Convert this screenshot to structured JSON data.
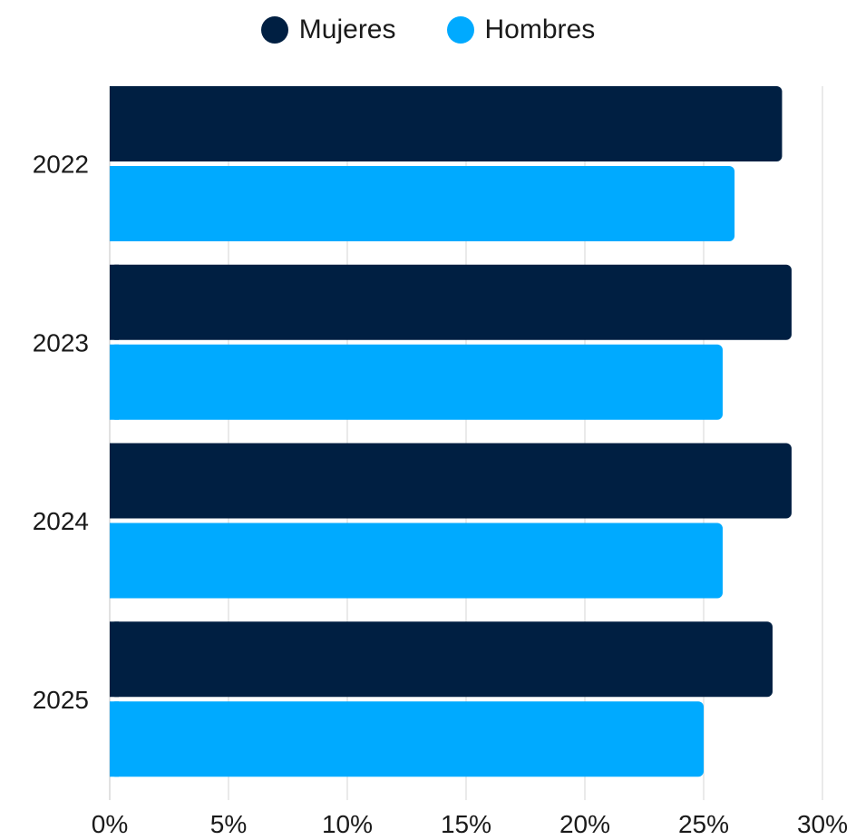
{
  "chart_data": {
    "type": "bar",
    "orientation": "horizontal",
    "categories": [
      "2022",
      "2023",
      "2024",
      "2025"
    ],
    "series": [
      {
        "name": "Mujeres",
        "color": "#001f42",
        "values": [
          28.3,
          28.7,
          28.7,
          27.9
        ]
      },
      {
        "name": "Hombres",
        "color": "#00aaff",
        "values": [
          26.3,
          25.8,
          25.8,
          25.0
        ]
      }
    ],
    "xlim": [
      0,
      30
    ],
    "xticks": [
      0,
      5,
      10,
      15,
      20,
      25,
      30
    ],
    "tick_format": "%",
    "grid": true,
    "legend_position": "top-center"
  }
}
